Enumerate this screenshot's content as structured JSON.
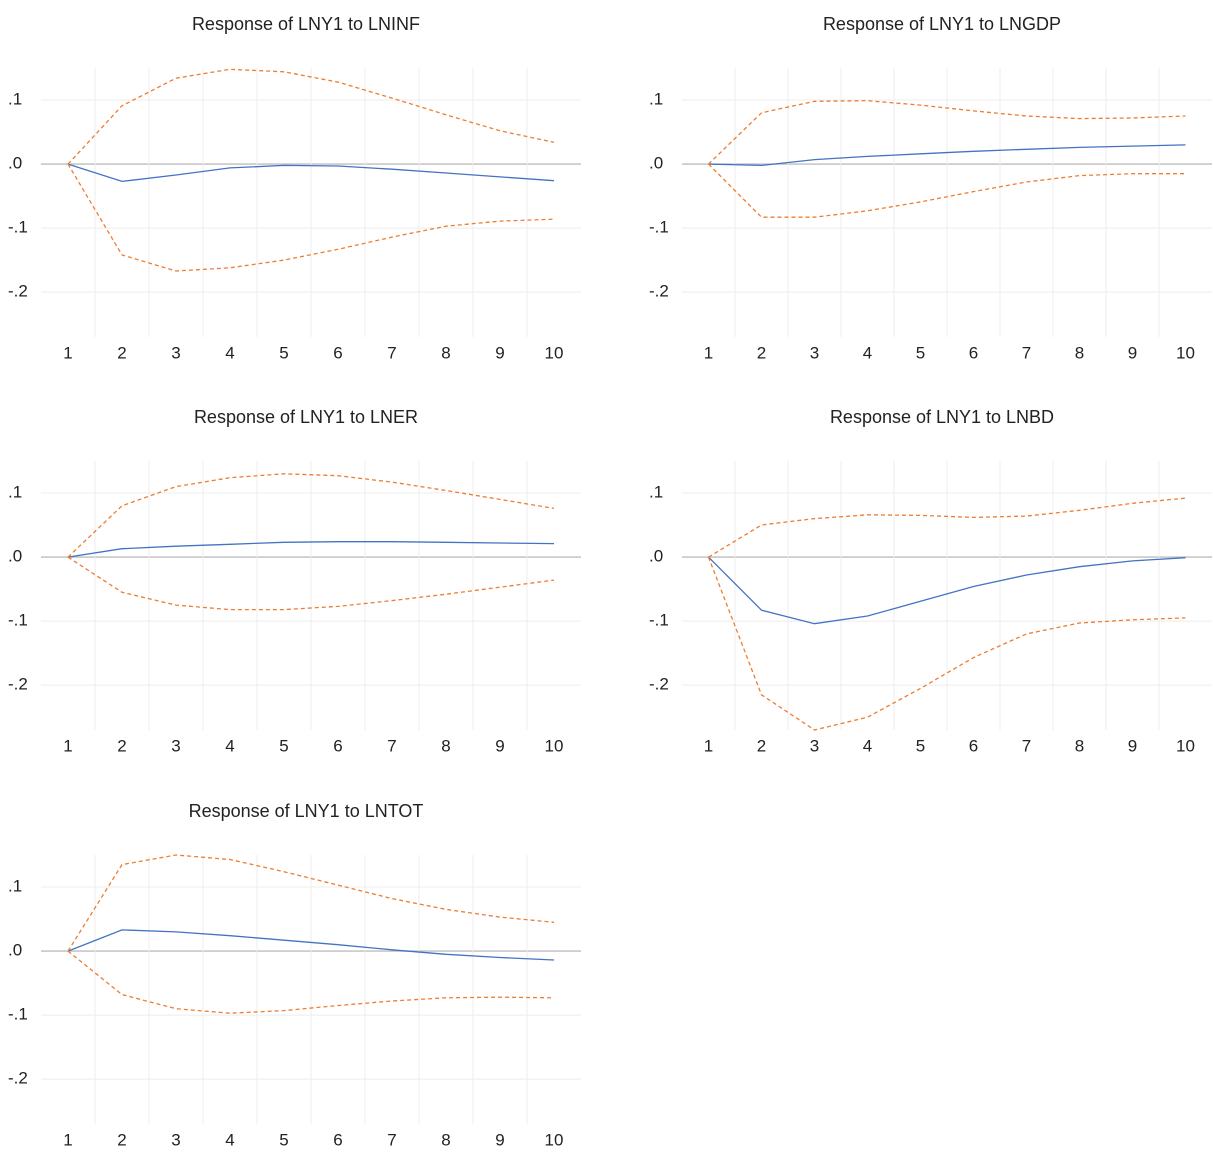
{
  "chart_data": [
    {
      "type": "line",
      "title": "Response of LNY1 to LNINF",
      "categories": [
        "1",
        "2",
        "3",
        "4",
        "5",
        "6",
        "7",
        "8",
        "9",
        "10"
      ],
      "series": [
        {
          "color": "#4472c4",
          "dash": false,
          "values": [
            0,
            -0.027,
            -0.017,
            -0.006,
            -0.002,
            -0.003,
            -0.008,
            -0.014,
            -0.02,
            -0.026
          ]
        },
        {
          "color": "#ed7d31",
          "dash": true,
          "values": [
            0,
            0.091,
            0.134,
            0.148,
            0.144,
            0.128,
            0.103,
            0.077,
            0.052,
            0.034
          ]
        },
        {
          "color": "#ed7d31",
          "dash": true,
          "values": [
            0,
            -0.142,
            -0.167,
            -0.162,
            -0.15,
            -0.133,
            -0.114,
            -0.097,
            -0.089,
            -0.086
          ]
        }
      ],
      "ylim": [
        -0.27,
        0.15
      ],
      "yticks": [
        {
          "value": 0.1,
          "label": ".1"
        },
        {
          "value": 0,
          "label": ".0"
        },
        {
          "value": -0.1,
          "label": "-.1"
        },
        {
          "value": -0.2,
          "label": "-.2"
        }
      ],
      "grid": true
    },
    {
      "type": "line",
      "title": "Response of LNY1 to LNGDP",
      "categories": [
        "1",
        "2",
        "3",
        "4",
        "5",
        "6",
        "7",
        "8",
        "9",
        "10"
      ],
      "series": [
        {
          "color": "#4472c4",
          "dash": false,
          "values": [
            0,
            -0.002,
            0.007,
            0.012,
            0.016,
            0.02,
            0.023,
            0.026,
            0.028,
            0.03
          ]
        },
        {
          "color": "#ed7d31",
          "dash": true,
          "values": [
            0,
            0.08,
            0.098,
            0.099,
            0.092,
            0.083,
            0.075,
            0.071,
            0.072,
            0.075
          ]
        },
        {
          "color": "#ed7d31",
          "dash": true,
          "values": [
            0,
            -0.083,
            -0.083,
            -0.073,
            -0.059,
            -0.043,
            -0.028,
            -0.018,
            -0.015,
            -0.015
          ]
        }
      ],
      "ylim": [
        -0.27,
        0.15
      ],
      "yticks": [
        {
          "value": 0.1,
          "label": ".1"
        },
        {
          "value": 0,
          "label": ".0"
        },
        {
          "value": -0.1,
          "label": "-.1"
        },
        {
          "value": -0.2,
          "label": "-.2"
        }
      ],
      "grid": true
    },
    {
      "type": "line",
      "title": "Response of LNY1 to LNER",
      "categories": [
        "1",
        "2",
        "3",
        "4",
        "5",
        "6",
        "7",
        "8",
        "9",
        "10"
      ],
      "series": [
        {
          "color": "#4472c4",
          "dash": false,
          "values": [
            0,
            0.013,
            0.017,
            0.02,
            0.023,
            0.024,
            0.024,
            0.023,
            0.022,
            0.021
          ]
        },
        {
          "color": "#ed7d31",
          "dash": true,
          "values": [
            0,
            0.08,
            0.11,
            0.124,
            0.13,
            0.127,
            0.117,
            0.104,
            0.09,
            0.076
          ]
        },
        {
          "color": "#ed7d31",
          "dash": true,
          "values": [
            0,
            -0.055,
            -0.075,
            -0.082,
            -0.082,
            -0.077,
            -0.068,
            -0.058,
            -0.047,
            -0.036
          ]
        }
      ],
      "ylim": [
        -0.27,
        0.15
      ],
      "yticks": [
        {
          "value": 0.1,
          "label": ".1"
        },
        {
          "value": 0,
          "label": ".0"
        },
        {
          "value": -0.1,
          "label": "-.1"
        },
        {
          "value": -0.2,
          "label": "-.2"
        }
      ],
      "grid": true
    },
    {
      "type": "line",
      "title": "Response of LNY1 to LNBD",
      "categories": [
        "1",
        "2",
        "3",
        "4",
        "5",
        "6",
        "7",
        "8",
        "9",
        "10"
      ],
      "series": [
        {
          "color": "#4472c4",
          "dash": false,
          "values": [
            0,
            -0.083,
            -0.104,
            -0.092,
            -0.069,
            -0.046,
            -0.028,
            -0.015,
            -0.006,
            -0.001
          ]
        },
        {
          "color": "#ed7d31",
          "dash": true,
          "values": [
            0,
            0.05,
            0.06,
            0.066,
            0.065,
            0.062,
            0.064,
            0.073,
            0.084,
            0.092
          ]
        },
        {
          "color": "#ed7d31",
          "dash": true,
          "values": [
            0,
            -0.215,
            -0.27,
            -0.25,
            -0.205,
            -0.157,
            -0.12,
            -0.103,
            -0.098,
            -0.095
          ]
        }
      ],
      "ylim": [
        -0.27,
        0.15
      ],
      "yticks": [
        {
          "value": 0.1,
          "label": ".1"
        },
        {
          "value": 0,
          "label": ".0"
        },
        {
          "value": -0.1,
          "label": "-.1"
        },
        {
          "value": -0.2,
          "label": "-.2"
        }
      ],
      "grid": true
    },
    {
      "type": "line",
      "title": "Response of LNY1 to LNTOT",
      "categories": [
        "1",
        "2",
        "3",
        "4",
        "5",
        "6",
        "7",
        "8",
        "9",
        "10"
      ],
      "series": [
        {
          "color": "#4472c4",
          "dash": false,
          "values": [
            0,
            0.033,
            0.03,
            0.024,
            0.017,
            0.01,
            0.002,
            -0.005,
            -0.01,
            -0.014
          ]
        },
        {
          "color": "#ed7d31",
          "dash": true,
          "values": [
            0,
            0.135,
            0.15,
            0.143,
            0.124,
            0.103,
            0.082,
            0.065,
            0.053,
            0.045
          ]
        },
        {
          "color": "#ed7d31",
          "dash": true,
          "values": [
            0,
            -0.068,
            -0.09,
            -0.097,
            -0.093,
            -0.085,
            -0.078,
            -0.073,
            -0.072,
            -0.073
          ]
        }
      ],
      "ylim": [
        -0.27,
        0.15
      ],
      "yticks": [
        {
          "value": 0.1,
          "label": ".1"
        },
        {
          "value": 0,
          "label": ".0"
        },
        {
          "value": -0.1,
          "label": "-.1"
        },
        {
          "value": -0.2,
          "label": "-.2"
        }
      ],
      "grid": true
    }
  ]
}
